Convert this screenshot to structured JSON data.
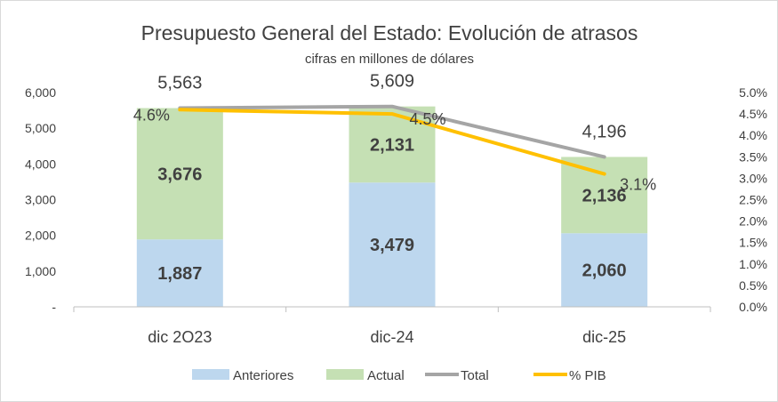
{
  "chart_data": {
    "type": "bar",
    "title": "Presupuesto General del Estado: Evolución de atrasos",
    "subtitle": "cifras en millones de dólares",
    "categories": [
      "dic 2O23",
      "dic-24",
      "dic-25"
    ],
    "series": [
      {
        "name": "Anteriores",
        "kind": "stacked-bar",
        "axis": "left",
        "color": "#bdd7ee",
        "values": [
          1887,
          3479,
          2060
        ],
        "labels": [
          "1,887",
          "3,479",
          "2,060"
        ]
      },
      {
        "name": "Actual",
        "kind": "stacked-bar",
        "axis": "left",
        "color": "#c5e0b4",
        "values": [
          3676,
          2131,
          2136
        ],
        "labels": [
          "3,676",
          "2,131",
          "2,136"
        ]
      },
      {
        "name": "Total",
        "kind": "line",
        "axis": "left",
        "color": "#a5a5a5",
        "values": [
          5563,
          5609,
          4196
        ],
        "labels": [
          "5,563",
          "5,609",
          "4,196"
        ]
      },
      {
        "name": "% PIB",
        "kind": "line",
        "axis": "right",
        "color": "#ffc000",
        "values": [
          4.6,
          4.5,
          3.1
        ],
        "labels": [
          "4.6%",
          "4.5%",
          "3.1%"
        ]
      }
    ],
    "ylim": [
      0,
      6000
    ],
    "y_ticks": [
      "-",
      "1,000",
      "2,000",
      "3,000",
      "4,000",
      "5,000",
      "6,000"
    ],
    "y2lim": [
      0,
      5
    ],
    "y2_ticks": [
      "0.0%",
      "0.5%",
      "1.0%",
      "1.5%",
      "2.0%",
      "2.5%",
      "3.0%",
      "3.5%",
      "4.0%",
      "4.5%",
      "5.0%"
    ],
    "grid": false,
    "legend_position": "bottom"
  }
}
